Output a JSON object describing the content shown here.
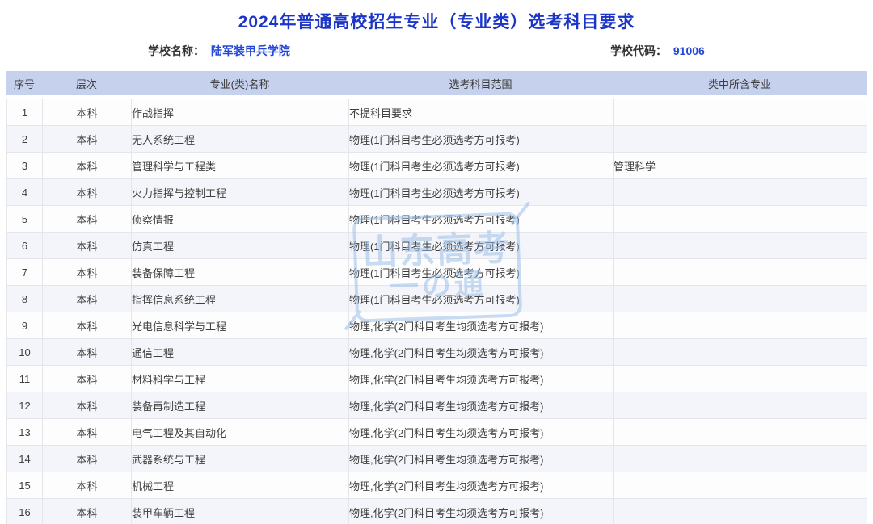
{
  "header": {
    "title": "2024年普通高校招生专业（专业类）选考科目要求",
    "school_name_label": "学校名称：",
    "school_name_value": "陆军装甲兵学院",
    "school_code_label": "学校代码：",
    "school_code_value": "91006"
  },
  "watermark": {
    "line1": "山东高考",
    "line2": "一の通"
  },
  "colors": {
    "title_blue": "#1b35c8",
    "value_blue": "#2347d8",
    "header_band": "#c6d1ee",
    "row_odd": "#fdfdfe",
    "row_even": "#f4f5fa",
    "border": "#e5e6eb",
    "watermark_blue": "#9cc0ea"
  },
  "table": {
    "columns": [
      "序号",
      "层次",
      "专业(类)名称",
      "选考科目范围",
      "类中所含专业"
    ],
    "rows": [
      {
        "no": "1",
        "level": "本科",
        "major": "作战指挥",
        "subjects": "不提科目要求",
        "included": ""
      },
      {
        "no": "2",
        "level": "本科",
        "major": "无人系统工程",
        "subjects": "物理(1门科目考生必须选考方可报考)",
        "included": ""
      },
      {
        "no": "3",
        "level": "本科",
        "major": "管理科学与工程类",
        "subjects": "物理(1门科目考生必须选考方可报考)",
        "included": "管理科学"
      },
      {
        "no": "4",
        "level": "本科",
        "major": "火力指挥与控制工程",
        "subjects": "物理(1门科目考生必须选考方可报考)",
        "included": ""
      },
      {
        "no": "5",
        "level": "本科",
        "major": "侦察情报",
        "subjects": "物理(1门科目考生必须选考方可报考)",
        "included": ""
      },
      {
        "no": "6",
        "level": "本科",
        "major": "仿真工程",
        "subjects": "物理(1门科目考生必须选考方可报考)",
        "included": ""
      },
      {
        "no": "7",
        "level": "本科",
        "major": "装备保障工程",
        "subjects": "物理(1门科目考生必须选考方可报考)",
        "included": ""
      },
      {
        "no": "8",
        "level": "本科",
        "major": "指挥信息系统工程",
        "subjects": "物理(1门科目考生必须选考方可报考)",
        "included": ""
      },
      {
        "no": "9",
        "level": "本科",
        "major": "光电信息科学与工程",
        "subjects": "物理,化学(2门科目考生均须选考方可报考)",
        "included": ""
      },
      {
        "no": "10",
        "level": "本科",
        "major": "通信工程",
        "subjects": "物理,化学(2门科目考生均须选考方可报考)",
        "included": ""
      },
      {
        "no": "11",
        "level": "本科",
        "major": "材料科学与工程",
        "subjects": "物理,化学(2门科目考生均须选考方可报考)",
        "included": ""
      },
      {
        "no": "12",
        "level": "本科",
        "major": "装备再制造工程",
        "subjects": "物理,化学(2门科目考生均须选考方可报考)",
        "included": ""
      },
      {
        "no": "13",
        "level": "本科",
        "major": "电气工程及其自动化",
        "subjects": "物理,化学(2门科目考生均须选考方可报考)",
        "included": ""
      },
      {
        "no": "14",
        "level": "本科",
        "major": "武器系统与工程",
        "subjects": "物理,化学(2门科目考生均须选考方可报考)",
        "included": ""
      },
      {
        "no": "15",
        "level": "本科",
        "major": "机械工程",
        "subjects": "物理,化学(2门科目考生均须选考方可报考)",
        "included": ""
      },
      {
        "no": "16",
        "level": "本科",
        "major": "装甲车辆工程",
        "subjects": "物理,化学(2门科目考生均须选考方可报考)",
        "included": ""
      }
    ]
  }
}
